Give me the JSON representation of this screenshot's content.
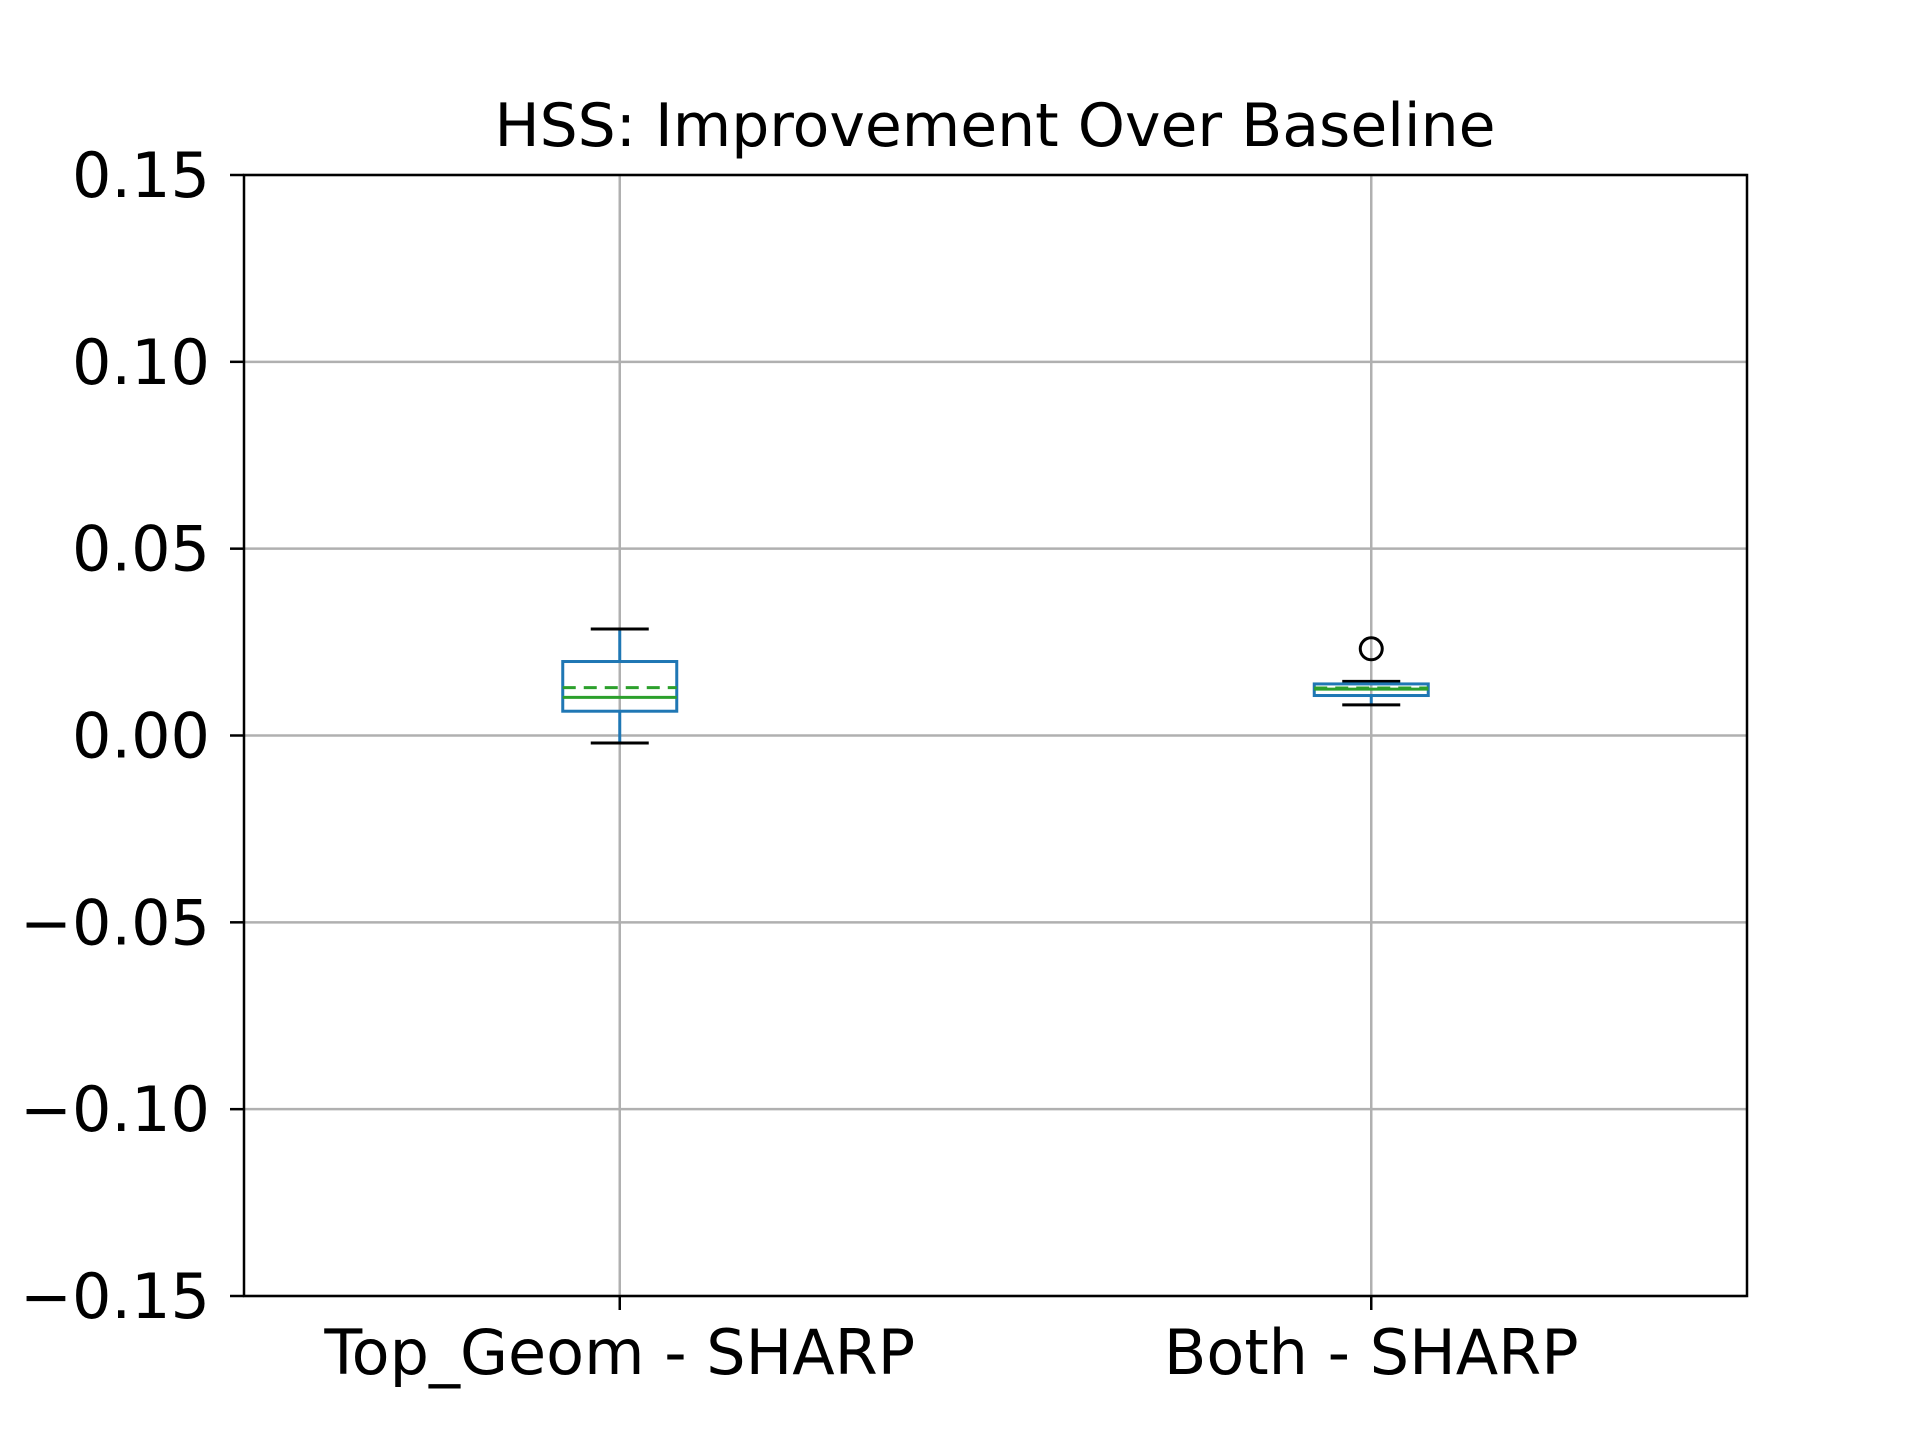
{
  "chart_data": {
    "type": "box",
    "title": "HSS: Improvement Over Baseline",
    "xlabel": "",
    "ylabel": "",
    "ylim": [
      -0.15,
      0.15
    ],
    "yticks": [
      0.15,
      0.1,
      0.05,
      0.0,
      -0.05,
      -0.1,
      -0.15
    ],
    "ytick_labels": [
      "0.15",
      "0.10",
      "0.05",
      "0.00",
      "−0.05",
      "−0.10",
      "−0.15"
    ],
    "grid": true,
    "categories": [
      "Top_Geom - SHARP",
      "Both - SHARP"
    ],
    "boxes": [
      {
        "name": "Top_Geom - SHARP",
        "whisker_low": -0.002,
        "q1": 0.0065,
        "median": 0.0102,
        "mean": 0.0128,
        "q3": 0.0198,
        "whisker_high": 0.0285,
        "outliers": []
      },
      {
        "name": "Both - SHARP",
        "whisker_low": 0.0082,
        "q1": 0.0107,
        "median": 0.0124,
        "mean": 0.0127,
        "q3": 0.0138,
        "whisker_high": 0.0145,
        "outliers": [
          0.0232
        ]
      }
    ],
    "colors": {
      "box": "#1f77b4",
      "median": "#2ca02c",
      "mean": "#2ca02c",
      "whisker_cap": "#000000",
      "grid": "#b0b0b0",
      "axes": "#000000"
    }
  }
}
